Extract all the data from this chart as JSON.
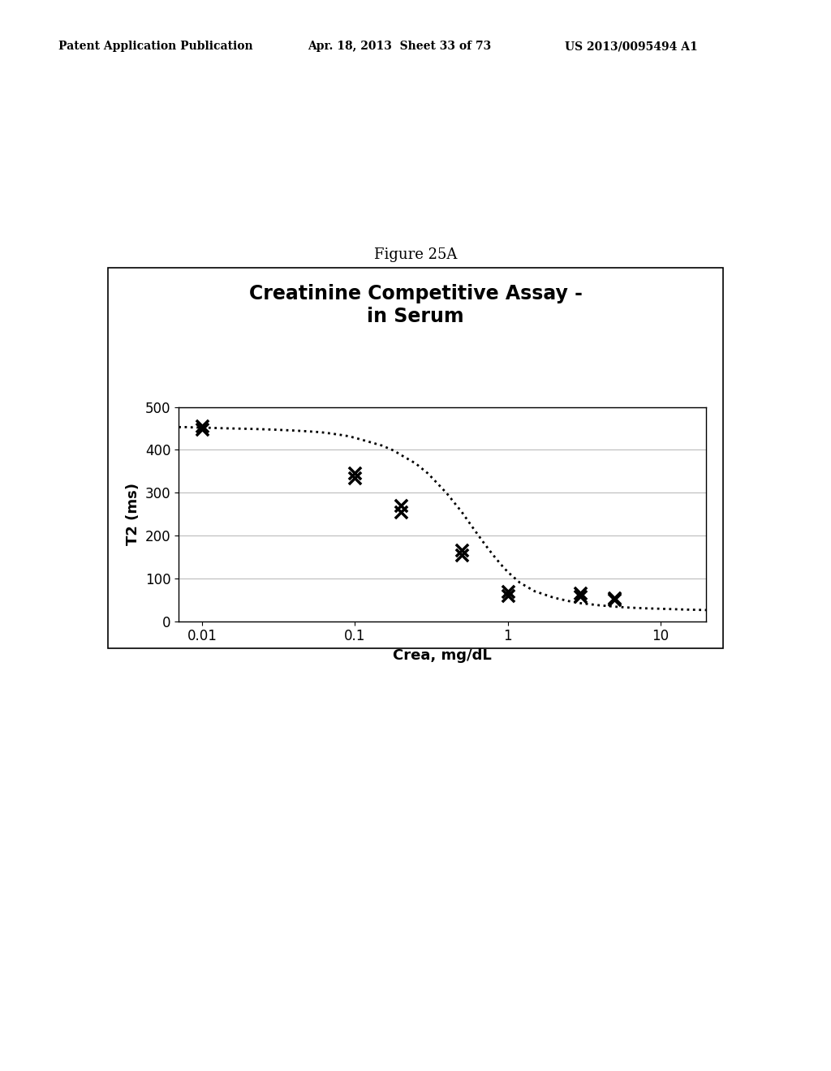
{
  "title_line1": "Creatinine Competitive Assay -",
  "title_line2": "in Serum",
  "xlabel": "Crea, mg/dL",
  "ylabel": "T2 (ms)",
  "figure_caption": "Figure 25A",
  "header_left": "Patent Application Publication",
  "header_mid": "Apr. 18, 2013  Sheet 33 of 73",
  "header_right": "US 2013/0095494 A1",
  "ylim": [
    0,
    500
  ],
  "yticks": [
    0,
    100,
    200,
    300,
    400,
    500
  ],
  "xtick_values": [
    0.01,
    0.1,
    1,
    10
  ],
  "xtick_labels": [
    "0.01",
    "0.1",
    "1",
    "10"
  ],
  "data_x": [
    0.01,
    0.01,
    0.1,
    0.1,
    0.2,
    0.2,
    0.5,
    0.5,
    1.0,
    1.0,
    3.0,
    3.0,
    5.0,
    5.0
  ],
  "data_y": [
    455,
    448,
    345,
    335,
    270,
    255,
    165,
    155,
    70,
    60,
    65,
    58,
    55,
    50
  ],
  "curve_x": [
    0.007,
    0.008,
    0.009,
    0.01,
    0.012,
    0.015,
    0.02,
    0.025,
    0.03,
    0.04,
    0.05,
    0.06,
    0.07,
    0.08,
    0.09,
    0.1,
    0.12,
    0.15,
    0.18,
    0.2,
    0.25,
    0.3,
    0.35,
    0.4,
    0.5,
    0.6,
    0.7,
    0.8,
    0.9,
    1.0,
    1.2,
    1.5,
    2.0,
    2.5,
    3.0,
    4.0,
    5.0,
    6.0,
    8.0,
    10.0,
    15.0,
    20.0
  ],
  "curve_y": [
    453,
    453,
    452,
    452,
    451,
    450,
    449,
    448,
    447,
    445,
    443,
    441,
    438,
    435,
    432,
    428,
    420,
    410,
    398,
    388,
    368,
    345,
    320,
    298,
    255,
    215,
    182,
    155,
    133,
    115,
    90,
    70,
    55,
    47,
    42,
    37,
    34,
    32,
    30,
    29,
    27,
    26
  ],
  "background_color": "#ffffff",
  "plot_bg_color": "#ffffff",
  "grid_color": "#bbbbbb",
  "box_color": "#000000",
  "marker_color": "#000000",
  "curve_color": "#000000",
  "title_fontsize": 17,
  "axis_label_fontsize": 13,
  "tick_fontsize": 12,
  "caption_fontsize": 13,
  "header_fontsize": 10
}
